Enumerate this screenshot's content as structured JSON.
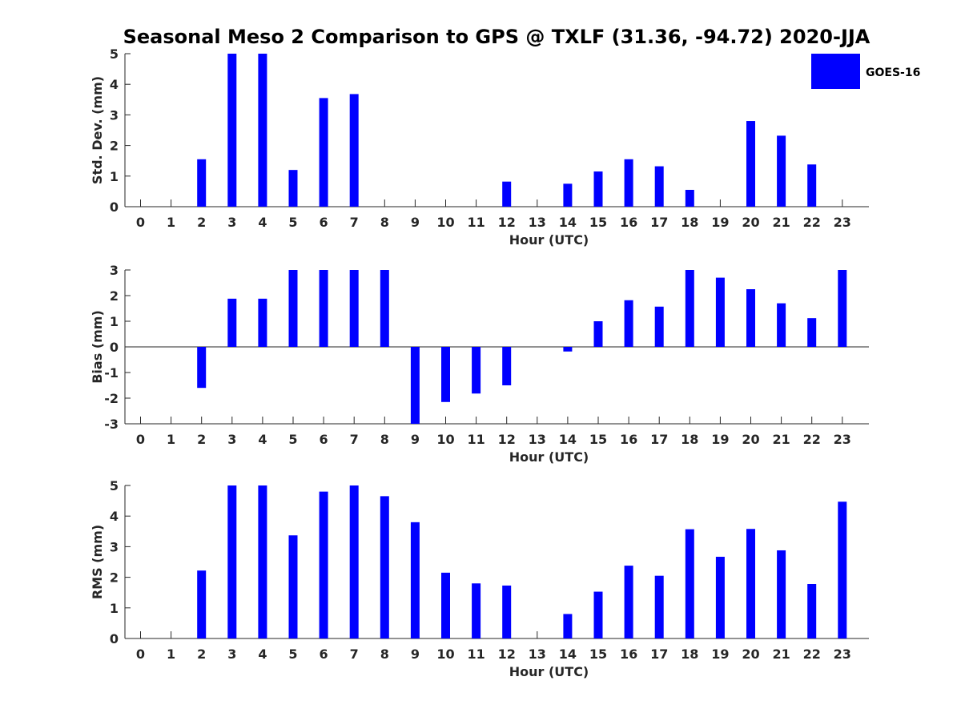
{
  "figure": {
    "title": "Seasonal Meso 2 Comparison to GPS @ TXLF (31.36, -94.72) 2020-JJA",
    "legend": {
      "label": "GOES-16",
      "color": "#0000ff",
      "placement": "top-right"
    }
  },
  "chart_data": [
    {
      "type": "bar",
      "name": "std-dev",
      "xlabel": "Hour (UTC)",
      "ylabel": "Std. Dev. (mm)",
      "ylim": [
        0,
        5
      ],
      "yticks": [
        0,
        1,
        2,
        3,
        4,
        5
      ],
      "x": [
        0,
        1,
        2,
        3,
        4,
        5,
        6,
        7,
        8,
        9,
        10,
        11,
        12,
        13,
        14,
        15,
        16,
        17,
        18,
        19,
        20,
        21,
        22,
        23
      ],
      "values": [
        0,
        0,
        1.55,
        5,
        5,
        1.2,
        3.55,
        3.68,
        0,
        0,
        0,
        0,
        0.82,
        0,
        0.75,
        1.15,
        1.55,
        1.32,
        0.55,
        0,
        2.8,
        2.32,
        1.38,
        0
      ],
      "series_color": "#0000ff",
      "grid": false
    },
    {
      "type": "bar",
      "name": "bias",
      "xlabel": "Hour (UTC)",
      "ylabel": "Bias (mm)",
      "ylim": [
        -3,
        3
      ],
      "yticks": [
        -3,
        -2,
        -1,
        0,
        1,
        2,
        3
      ],
      "zero_line": true,
      "x": [
        0,
        1,
        2,
        3,
        4,
        5,
        6,
        7,
        8,
        9,
        10,
        11,
        12,
        13,
        14,
        15,
        16,
        17,
        18,
        19,
        20,
        21,
        22,
        23
      ],
      "values": [
        0,
        0,
        -1.6,
        1.88,
        1.88,
        3,
        3,
        3,
        3,
        -3,
        -2.15,
        -1.82,
        -1.5,
        0,
        -0.18,
        1.0,
        1.82,
        1.57,
        3,
        2.7,
        2.25,
        1.7,
        1.12,
        3
      ],
      "series_color": "#0000ff",
      "grid": false
    },
    {
      "type": "bar",
      "name": "rms",
      "xlabel": "Hour (UTC)",
      "ylabel": "RMS (mm)",
      "ylim": [
        0,
        5
      ],
      "yticks": [
        0,
        1,
        2,
        3,
        4,
        5
      ],
      "x": [
        0,
        1,
        2,
        3,
        4,
        5,
        6,
        7,
        8,
        9,
        10,
        11,
        12,
        13,
        14,
        15,
        16,
        17,
        18,
        19,
        20,
        21,
        22,
        23
      ],
      "values": [
        0,
        0,
        2.22,
        5,
        5,
        3.37,
        4.8,
        5,
        4.65,
        3.8,
        2.15,
        1.8,
        1.73,
        0,
        0.8,
        1.53,
        2.38,
        2.05,
        3.57,
        2.67,
        3.58,
        2.88,
        1.78,
        4.47
      ],
      "series_color": "#0000ff",
      "grid": false
    }
  ]
}
